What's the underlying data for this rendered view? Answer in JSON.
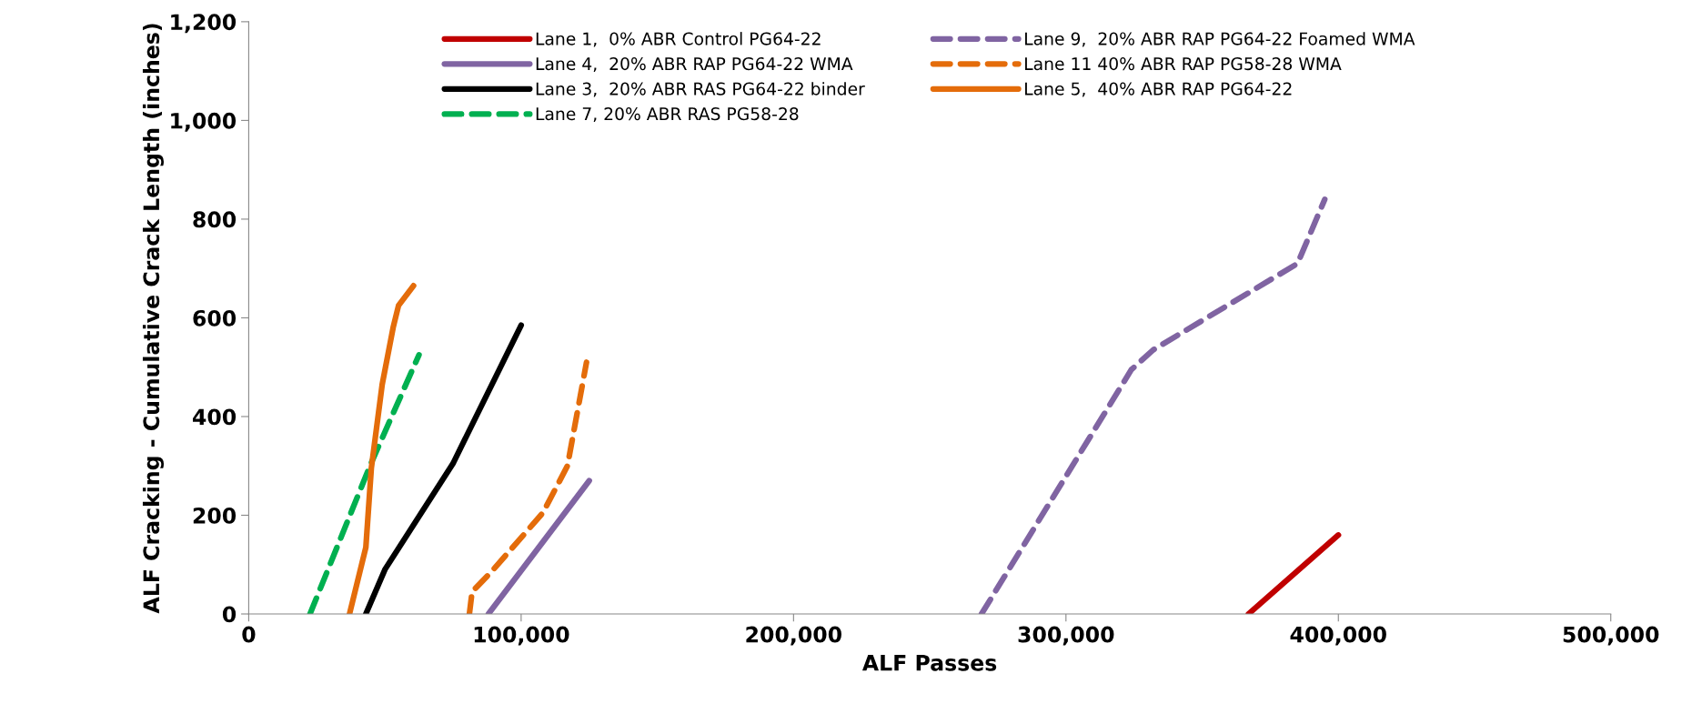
{
  "chart_data": {
    "type": "line",
    "xlabel": "ALF Passes",
    "ylabel": "ALF Cracking - Cumulative Crack Length (inches)",
    "xlim": [
      0,
      500000
    ],
    "xticks": [
      0,
      {
        "value": 100000,
        "label": "100,000"
      },
      {
        "value": 200000,
        "label": "200,000"
      },
      {
        "value": 300000,
        "label": "300,000"
      },
      {
        "value": 400000,
        "label": "400,000"
      },
      {
        "value": 500000,
        "label": "500,000"
      }
    ],
    "ylim": [
      0,
      1200
    ],
    "yticks": [
      0,
      200,
      400,
      600,
      800,
      {
        "value": 1000,
        "label": "1,000"
      },
      {
        "value": 1200,
        "label": "1,200"
      }
    ],
    "grid": false,
    "legend": "top",
    "marker": "none",
    "series": [
      {
        "name": "Lane 1,  0% ABR Control PG64-22",
        "color": "#c00000",
        "line_style": "solid",
        "x": [
          367000,
          400000
        ],
        "values": [
          0,
          160
        ]
      },
      {
        "name": "Lane 4,  20% ABR RAP PG64-22 WMA",
        "color": "#8064a2",
        "line_style": "solid",
        "x": [
          88000,
          125000
        ],
        "values": [
          0,
          270
        ]
      },
      {
        "name": "Lane 3,  20% ABR RAS PG64-22 binder",
        "color": "#000000",
        "line_style": "solid",
        "x": [
          43000,
          50000,
          75000,
          100000
        ],
        "values": [
          0,
          90,
          305,
          585
        ]
      },
      {
        "name": "Lane 7, 20% ABR RAS PG58-28",
        "color": "#00b050",
        "line_style": "dashed",
        "x": [
          22500,
          44500,
          62500
        ],
        "values": [
          0,
          300,
          525
        ]
      },
      {
        "name": "Lane 9,  20% ABR RAP PG64-22 Foamed WMA",
        "color": "#8064a2",
        "line_style": "dashed",
        "x": [
          269000,
          324000,
          332000,
          385000,
          395000
        ],
        "values": [
          0,
          495,
          535,
          710,
          840
        ]
      },
      {
        "name": "Lane 11 40% ABR RAP PG58-28 WMA",
        "color": "#e46c0a",
        "line_style": "dashed",
        "x": [
          81000,
          82000,
          89000,
          108000,
          117000,
          124000
        ],
        "values": [
          0,
          45,
          85,
          205,
          300,
          510
        ]
      },
      {
        "name": "Lane 5,  40% ABR RAP PG64-22",
        "color": "#e46c0a",
        "line_style": "solid",
        "x": [
          37000,
          43000,
          45000,
          49000,
          53000,
          55000,
          60500
        ],
        "values": [
          0,
          135,
          295,
          465,
          580,
          625,
          665
        ]
      }
    ]
  }
}
